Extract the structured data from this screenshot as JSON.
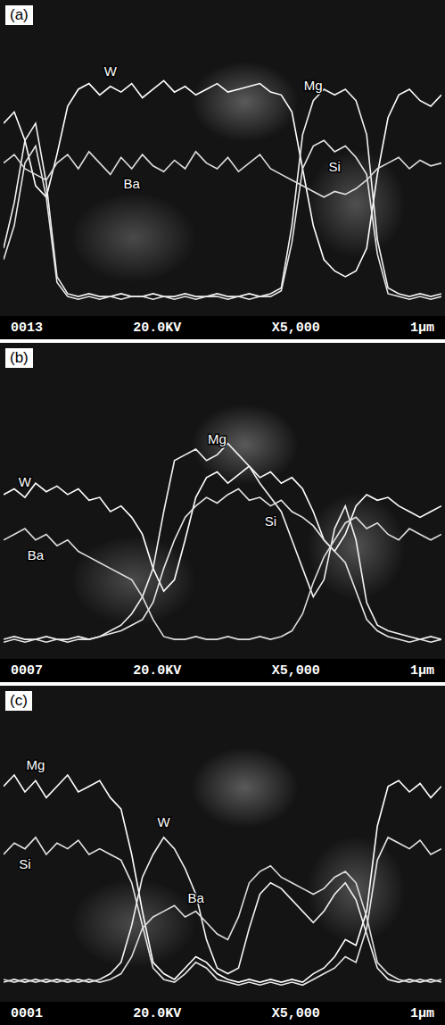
{
  "chart_data": [
    {
      "type": "line",
      "title": "(a)",
      "tick_labels": false,
      "grid": false,
      "xlim": [
        0,
        41
      ],
      "ylim": [
        0,
        100
      ],
      "annotations": [
        "0013",
        "20.0KV",
        "X5,000",
        "1μm"
      ],
      "x": [
        0,
        1,
        2,
        3,
        4,
        5,
        6,
        7,
        8,
        9,
        10,
        11,
        12,
        13,
        14,
        15,
        16,
        17,
        18,
        19,
        20,
        21,
        22,
        23,
        24,
        25,
        26,
        27,
        28,
        29,
        30,
        31,
        32,
        33,
        34,
        35,
        36,
        37,
        38,
        39,
        40,
        41
      ],
      "series": [
        {
          "name": "W",
          "color": "#ffffff",
          "values": [
            66,
            70,
            60,
            44,
            40,
            55,
            72,
            78,
            80,
            76,
            79,
            77,
            80,
            75,
            78,
            81,
            77,
            79,
            76,
            78,
            80,
            77,
            78,
            79,
            80,
            77,
            76,
            70,
            50,
            30,
            18,
            14,
            12,
            14,
            22,
            48,
            68,
            76,
            78,
            74,
            72,
            76
          ]
        },
        {
          "name": "Mg",
          "color": "#f2f2f2",
          "values": [
            22,
            38,
            60,
            66,
            45,
            12,
            6,
            5,
            6,
            5,
            5,
            6,
            5,
            5,
            6,
            5,
            5,
            6,
            5,
            5,
            6,
            5,
            5,
            6,
            5,
            6,
            8,
            30,
            62,
            74,
            78,
            76,
            78,
            74,
            62,
            25,
            8,
            6,
            5,
            6,
            5,
            6
          ]
        },
        {
          "name": "Si",
          "color": "#e6e6e6",
          "values": [
            18,
            30,
            52,
            58,
            40,
            10,
            5,
            4,
            5,
            4,
            5,
            4,
            5,
            5,
            4,
            5,
            4,
            5,
            4,
            5,
            5,
            4,
            5,
            4,
            5,
            5,
            7,
            24,
            50,
            58,
            60,
            56,
            58,
            54,
            48,
            20,
            6,
            5,
            4,
            5,
            4,
            5
          ]
        },
        {
          "name": "Ba",
          "color": "#dddddd",
          "values": [
            52,
            55,
            50,
            48,
            46,
            52,
            55,
            50,
            56,
            52,
            48,
            54,
            50,
            55,
            51,
            49,
            53,
            50,
            56,
            52,
            50,
            54,
            49,
            52,
            55,
            50,
            48,
            46,
            44,
            42,
            40,
            42,
            41,
            43,
            46,
            50,
            52,
            54,
            50,
            53,
            51,
            52
          ]
        }
      ]
    },
    {
      "type": "line",
      "title": "(b)",
      "tick_labels": false,
      "grid": false,
      "xlim": [
        0,
        41
      ],
      "ylim": [
        0,
        100
      ],
      "annotations": [
        "0007",
        "20.0KV",
        "X5,000",
        "1μm"
      ],
      "x": [
        0,
        1,
        2,
        3,
        4,
        5,
        6,
        7,
        8,
        9,
        10,
        11,
        12,
        13,
        14,
        15,
        16,
        17,
        18,
        19,
        20,
        21,
        22,
        23,
        24,
        25,
        26,
        27,
        28,
        29,
        30,
        31,
        32,
        33,
        34,
        35,
        36,
        37,
        38,
        39,
        40,
        41
      ],
      "series": [
        {
          "name": "W",
          "color": "#ffffff",
          "values": [
            56,
            58,
            55,
            60,
            57,
            59,
            56,
            58,
            54,
            55,
            50,
            52,
            48,
            42,
            30,
            22,
            26,
            40,
            55,
            62,
            64,
            60,
            63,
            66,
            62,
            64,
            60,
            62,
            58,
            50,
            40,
            36,
            42,
            52,
            56,
            54,
            55,
            52,
            50,
            48,
            50,
            52
          ]
        },
        {
          "name": "Mg",
          "color": "#f2f2f2",
          "values": [
            5,
            6,
            5,
            5,
            6,
            5,
            5,
            6,
            5,
            6,
            8,
            10,
            14,
            20,
            30,
            50,
            68,
            70,
            72,
            68,
            70,
            74,
            70,
            66,
            60,
            55,
            50,
            40,
            30,
            20,
            26,
            44,
            52,
            40,
            18,
            10,
            8,
            7,
            6,
            5,
            6,
            5
          ]
        },
        {
          "name": "Si",
          "color": "#e6e6e6",
          "values": [
            4,
            5,
            4,
            5,
            4,
            5,
            4,
            5,
            5,
            6,
            7,
            8,
            10,
            12,
            18,
            30,
            40,
            48,
            52,
            55,
            53,
            56,
            58,
            54,
            55,
            52,
            54,
            50,
            48,
            45,
            40,
            36,
            32,
            22,
            12,
            8,
            6,
            5,
            4,
            5,
            4,
            5
          ]
        },
        {
          "name": "Ba",
          "color": "#dddddd",
          "values": [
            40,
            42,
            44,
            40,
            42,
            38,
            40,
            36,
            34,
            32,
            30,
            28,
            26,
            20,
            12,
            6,
            5,
            5,
            6,
            5,
            5,
            6,
            5,
            5,
            6,
            5,
            6,
            8,
            14,
            25,
            34,
            40,
            46,
            48,
            44,
            46,
            42,
            40,
            44,
            42,
            40,
            42
          ]
        }
      ]
    },
    {
      "type": "line",
      "title": "(c)",
      "tick_labels": false,
      "grid": false,
      "xlim": [
        0,
        41
      ],
      "ylim": [
        0,
        100
      ],
      "annotations": [
        "0001",
        "20.0KV",
        "X5,000",
        "1μm"
      ],
      "x": [
        0,
        1,
        2,
        3,
        4,
        5,
        6,
        7,
        8,
        9,
        10,
        11,
        12,
        13,
        14,
        15,
        16,
        17,
        18,
        19,
        20,
        21,
        22,
        23,
        24,
        25,
        26,
        27,
        28,
        29,
        30,
        31,
        32,
        33,
        34,
        35,
        36,
        37,
        38,
        39,
        40,
        41
      ],
      "series": [
        {
          "name": "Mg",
          "color": "#ffffff",
          "values": [
            74,
            78,
            72,
            76,
            70,
            74,
            78,
            72,
            74,
            76,
            70,
            66,
            50,
            30,
            12,
            8,
            6,
            10,
            14,
            12,
            8,
            6,
            5,
            6,
            5,
            6,
            5,
            6,
            5,
            8,
            10,
            14,
            20,
            18,
            30,
            60,
            74,
            76,
            72,
            75,
            70,
            74
          ]
        },
        {
          "name": "Si",
          "color": "#e6e6e6",
          "values": [
            50,
            54,
            52,
            56,
            50,
            54,
            52,
            55,
            50,
            52,
            50,
            48,
            40,
            25,
            10,
            6,
            5,
            8,
            12,
            10,
            6,
            5,
            4,
            5,
            4,
            5,
            4,
            5,
            4,
            6,
            8,
            10,
            14,
            12,
            24,
            48,
            56,
            54,
            52,
            55,
            50,
            52
          ]
        },
        {
          "name": "W",
          "color": "#f2f2f2",
          "values": [
            5,
            6,
            5,
            6,
            5,
            6,
            5,
            6,
            5,
            6,
            8,
            12,
            25,
            42,
            50,
            56,
            52,
            45,
            36,
            20,
            10,
            8,
            10,
            24,
            36,
            40,
            38,
            34,
            30,
            26,
            30,
            36,
            40,
            34,
            22,
            10,
            6,
            5,
            6,
            5,
            6,
            5
          ]
        },
        {
          "name": "Ba",
          "color": "#dddddd",
          "values": [
            6,
            5,
            6,
            5,
            6,
            5,
            6,
            5,
            6,
            5,
            6,
            8,
            14,
            24,
            28,
            30,
            32,
            28,
            30,
            26,
            22,
            20,
            28,
            40,
            44,
            46,
            42,
            40,
            38,
            36,
            38,
            42,
            44,
            40,
            28,
            12,
            8,
            6,
            5,
            6,
            5,
            6
          ]
        }
      ]
    }
  ]
}
